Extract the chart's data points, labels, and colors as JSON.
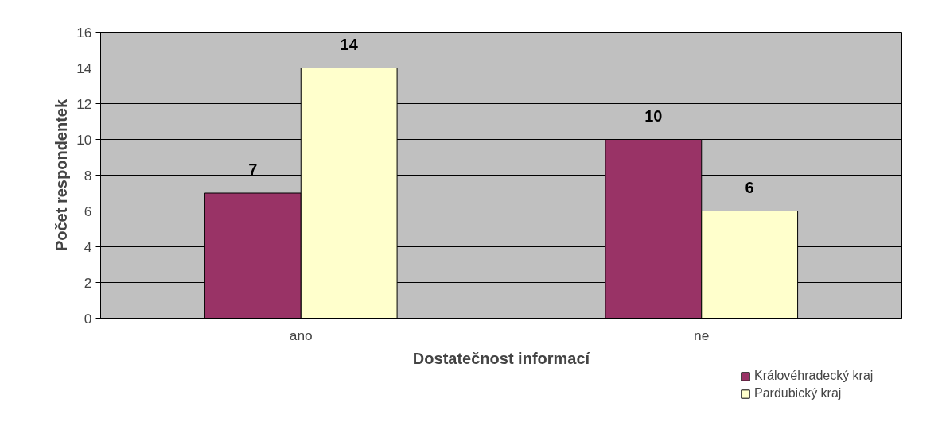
{
  "chart_data": {
    "type": "bar",
    "xlabel": "Dostatečnost informací",
    "ylabel": "Počet respondentek",
    "categories": [
      "ano",
      "ne"
    ],
    "series": [
      {
        "name": "Královéhradecký kraj",
        "color": "#993366",
        "values": [
          7,
          10
        ]
      },
      {
        "name": "Pardubický kraj",
        "color": "#ffffcc",
        "values": [
          14,
          6
        ]
      }
    ],
    "ylim": [
      0,
      16
    ],
    "yticks": [
      0,
      2,
      4,
      6,
      8,
      10,
      12,
      14,
      16
    ],
    "grid": "y",
    "legend": "bottom right",
    "data_labels": true
  }
}
